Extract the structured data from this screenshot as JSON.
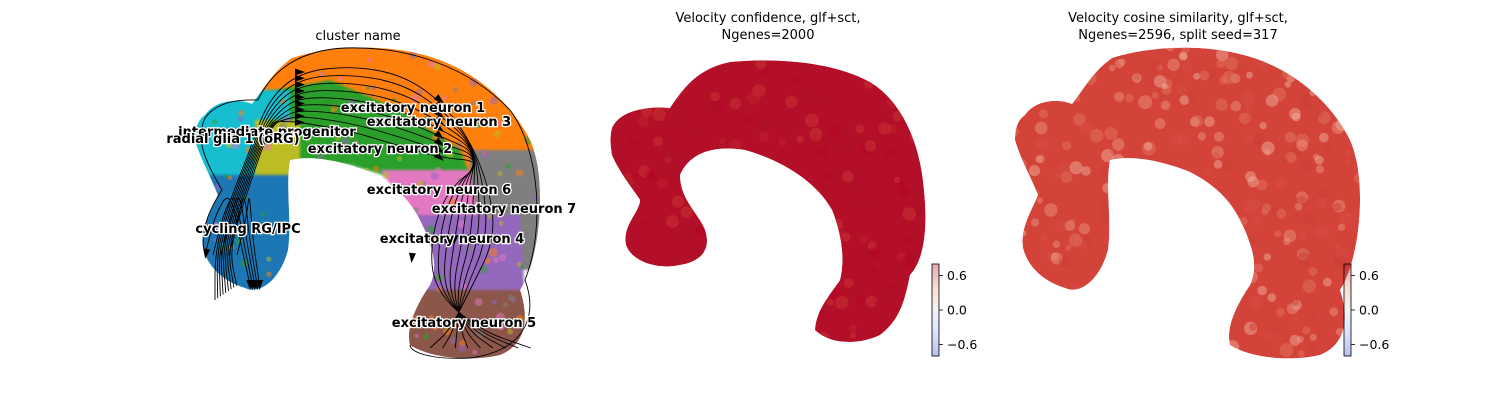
{
  "chart_data": [
    {
      "type": "scatter",
      "title": "cluster name",
      "overlay": "velocity streamlines",
      "axes_visible": false,
      "legend": "on data",
      "clusters": [
        {
          "name": "radial glia 1 (oRG)",
          "color": "#17becf"
        },
        {
          "name": "intermediate progenitor",
          "color": "#bcbd22"
        },
        {
          "name": "cycling RG/IPC",
          "color": "#1f77b4"
        },
        {
          "name": "excitatory neuron 1",
          "color": "#ff7f0e"
        },
        {
          "name": "excitatory neuron 2",
          "color": "#2ca02c"
        },
        {
          "name": "excitatory neuron 3",
          "color": "#ff7f0e"
        },
        {
          "name": "excitatory neuron 4",
          "color": "#9467bd"
        },
        {
          "name": "excitatory neuron 5",
          "color": "#8c564b"
        },
        {
          "name": "excitatory neuron 6",
          "color": "#e377c2"
        },
        {
          "name": "excitatory neuron 7",
          "color": "#7f7f7f"
        }
      ]
    },
    {
      "type": "scatter",
      "title": "Velocity confidence, glf+sct,\nNgenes=2000",
      "axes_visible": false,
      "colormap": "coolwarm",
      "dominant_color": "#b40f29",
      "colorbar": {
        "ticks": [
          0.6,
          0.0,
          -0.6
        ],
        "tick_labels": [
          "0.6",
          "0.0",
          "−0.6"
        ],
        "range": [
          -0.8,
          0.8
        ]
      }
    },
    {
      "type": "scatter",
      "title": "Velocity cosine similarity, glf+sct,\nNgenes=2596, split seed=317",
      "axes_visible": false,
      "colormap": "coolwarm",
      "dominant_color": "#d4433a",
      "colorbar": {
        "ticks": [
          0.6,
          0.0,
          -0.6
        ],
        "tick_labels": [
          "0.6",
          "0.0",
          "−0.6"
        ],
        "range": [
          -0.8,
          0.8
        ]
      }
    }
  ]
}
